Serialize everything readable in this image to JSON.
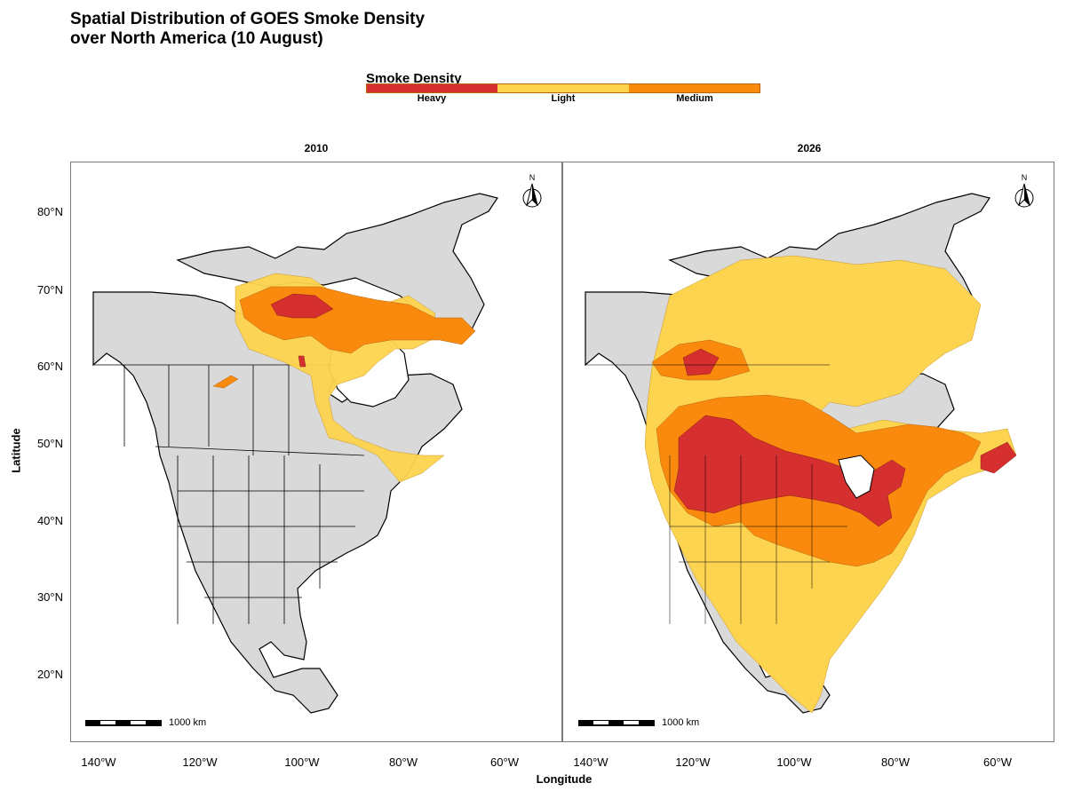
{
  "title_line1": "Spatial Distribution of GOES Smoke Density",
  "title_line2": "over North America (10 August)",
  "legend": {
    "title": "Smoke Density",
    "items": [
      {
        "label": "Heavy",
        "color": "#d62f2f"
      },
      {
        "label": "Light",
        "color": "#fdd44f"
      },
      {
        "label": "Medium",
        "color": "#f98a0e"
      }
    ]
  },
  "panels": [
    {
      "label": "2010"
    },
    {
      "label": "2026"
    }
  ],
  "axes": {
    "x_title": "Longitude",
    "y_title": "Latitude",
    "x_ticks": [
      "140°W",
      "120°W",
      "100°W",
      "80°W",
      "60°W"
    ],
    "y_ticks": [
      "80°N",
      "70°N",
      "60°N",
      "50°N",
      "40°N",
      "30°N",
      "20°N"
    ]
  },
  "scale_bar_label": "1000 km",
  "north_arrow_label": "N",
  "colors": {
    "land": "#d9d9d9",
    "border": "#000000"
  }
}
